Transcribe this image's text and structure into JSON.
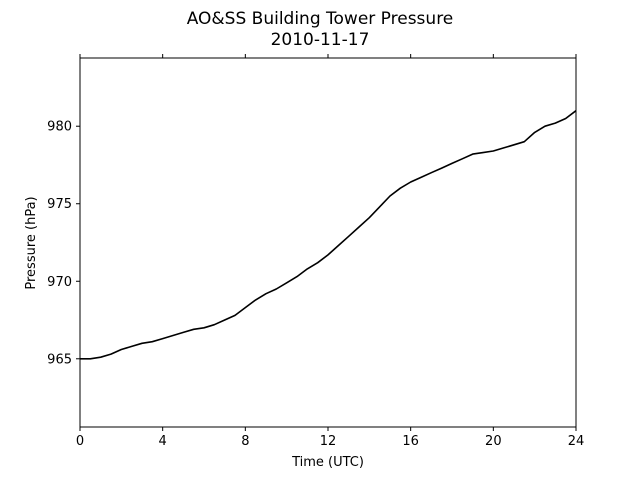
{
  "chart_data": {
    "type": "line",
    "title": "AO&SS Building Tower Pressure",
    "subtitle": "2010-11-17",
    "xlabel": "Time (UTC)",
    "ylabel": "Pressure (hPa)",
    "xlim": [
      0,
      24
    ],
    "ylim": [
      960.6,
      984.4
    ],
    "xticks": [
      0,
      4,
      8,
      12,
      16,
      20,
      24
    ],
    "yticks": [
      965,
      970,
      975,
      980
    ],
    "grid": false,
    "legend": "none",
    "line_color": "#000000",
    "series": [
      {
        "x": [
          0,
          0.5,
          1,
          1.5,
          2,
          2.5,
          3,
          3.5,
          4,
          4.5,
          5,
          5.5,
          6,
          6.5,
          7,
          7.5,
          8,
          8.5,
          9,
          9.5,
          10,
          10.5,
          11,
          11.5,
          12,
          12.5,
          13,
          13.5,
          14,
          14.5,
          15,
          15.5,
          16,
          16.5,
          17,
          17.5,
          18,
          18.5,
          19,
          19.5,
          20,
          20.5,
          21,
          21.5,
          22,
          22.5,
          23,
          23.5,
          24
        ],
        "values": [
          965.0,
          965.0,
          965.1,
          965.3,
          965.6,
          965.8,
          966.0,
          966.1,
          966.3,
          966.5,
          966.7,
          966.9,
          967.0,
          967.2,
          967.5,
          967.8,
          968.3,
          968.8,
          969.2,
          969.5,
          969.9,
          970.3,
          970.8,
          971.2,
          971.7,
          972.3,
          972.9,
          973.5,
          974.1,
          974.8,
          975.5,
          976.0,
          976.4,
          976.7,
          977.0,
          977.3,
          977.6,
          977.9,
          978.2,
          978.3,
          978.4,
          978.6,
          978.8,
          979.0,
          979.6,
          980.0,
          980.2,
          980.5,
          981.0
        ]
      }
    ]
  }
}
